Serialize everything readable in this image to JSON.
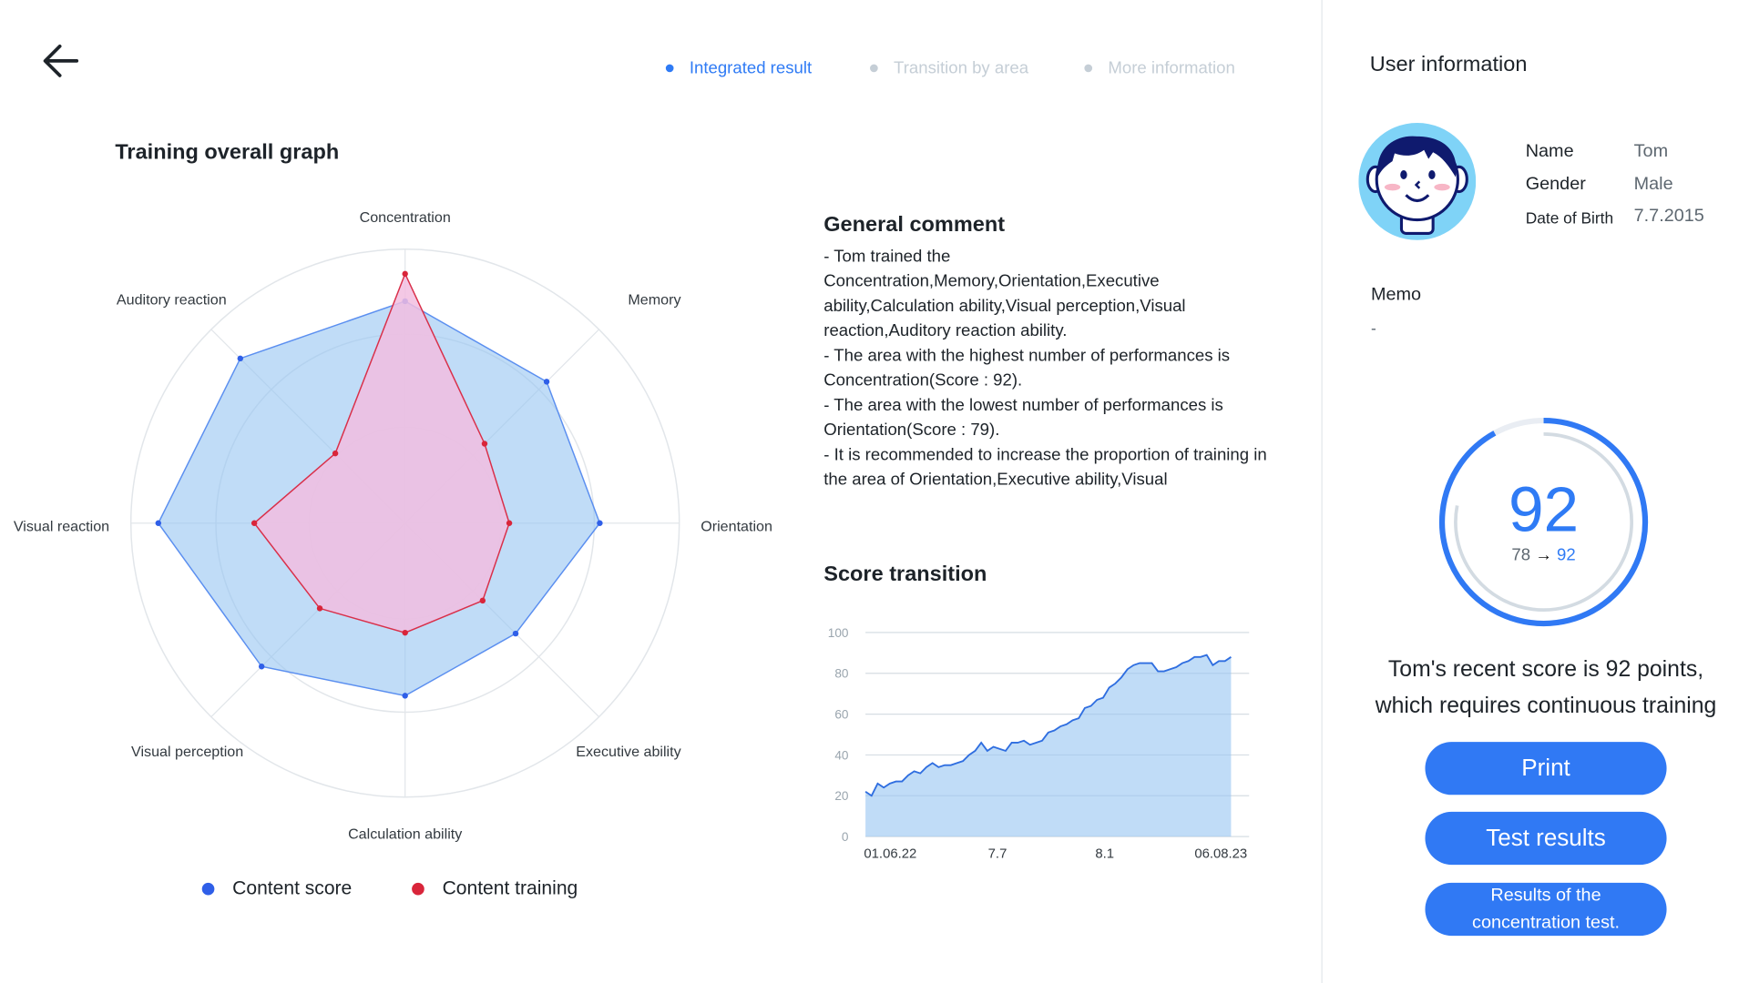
{
  "nav": {
    "back_icon": "arrow-left-icon"
  },
  "tabs": [
    {
      "label": "Integrated result",
      "active": true
    },
    {
      "label": "Transition by area",
      "active": false
    },
    {
      "label": "More information",
      "active": false
    }
  ],
  "radar_title": "Training overall graph",
  "chart_data": [
    {
      "type": "radar",
      "title": "Training overall graph",
      "categories": [
        "Concentration",
        "Memory",
        "Orientation",
        "Executive ability",
        "Calculation ability",
        "Visual perception",
        "Visual reaction",
        "Auditory reaction"
      ],
      "range": [
        0,
        100
      ],
      "series": [
        {
          "name": "Content score",
          "color": "#2f5fe8",
          "values": [
            81,
            73,
            71,
            57,
            63,
            74,
            90,
            85
          ]
        },
        {
          "name": "Content training",
          "color": "#d9253a",
          "values": [
            91,
            41,
            38,
            40,
            40,
            44,
            55,
            36
          ]
        }
      ],
      "legend": "bottom"
    },
    {
      "type": "area",
      "title": "Score transition",
      "ylim": [
        0,
        100
      ],
      "yticks": [
        "0",
        "20",
        "40",
        "60",
        "80",
        "100"
      ],
      "xticks": [
        "01.06.22",
        "7.7",
        "8.1",
        "06.08.23"
      ],
      "values": [
        22,
        20,
        26,
        24,
        26,
        27,
        27,
        30,
        32,
        31,
        34,
        36,
        34,
        35,
        35,
        36,
        37,
        40,
        42,
        46,
        42,
        44,
        43,
        42,
        46,
        46,
        47,
        45,
        46,
        47,
        51,
        52,
        54,
        55,
        57,
        58,
        63,
        64,
        67,
        68,
        73,
        75,
        78,
        82,
        84,
        85,
        85,
        85,
        81,
        81,
        82,
        83,
        85,
        86,
        88,
        88,
        89,
        84,
        86,
        86,
        88
      ],
      "grid": true
    }
  ],
  "comment": {
    "title": "General comment",
    "lines": [
      "- Tom trained the Concentration,Memory,Orientation,Executive ability,Calculation ability,Visual perception,Visual reaction,Auditory reaction ability.",
      "- The area with the highest number of performances is Concentration(Score : 92).",
      "- The area with the lowest number of performances is Orientation(Score : 79).",
      "- It is recommended to increase the proportion of training in the area of Orientation,Executive ability,Visual"
    ]
  },
  "score_title": "Score transition",
  "user": {
    "title": "User information",
    "name_label": "Name",
    "name": "Tom",
    "gender_label": "Gender",
    "gender": "Male",
    "dob_label": "Date of Birth",
    "dob": "7.7.2015",
    "memo_label": "Memo",
    "memo": "-"
  },
  "score": {
    "current": "92",
    "previous": "78",
    "arrow": "→",
    "current_small": "92",
    "progress_current": 0.92,
    "progress_previous": 0.78,
    "message_line1": "Tom's recent score is 92 points,",
    "message_line2": "which requires continuous training"
  },
  "buttons": {
    "print": "Print",
    "test_results": "Test results",
    "concentration": "Results of the concentration test."
  },
  "colors": {
    "accent": "#3079f4",
    "score_blue": "#2f5fe8",
    "training_red": "#d9253a"
  }
}
